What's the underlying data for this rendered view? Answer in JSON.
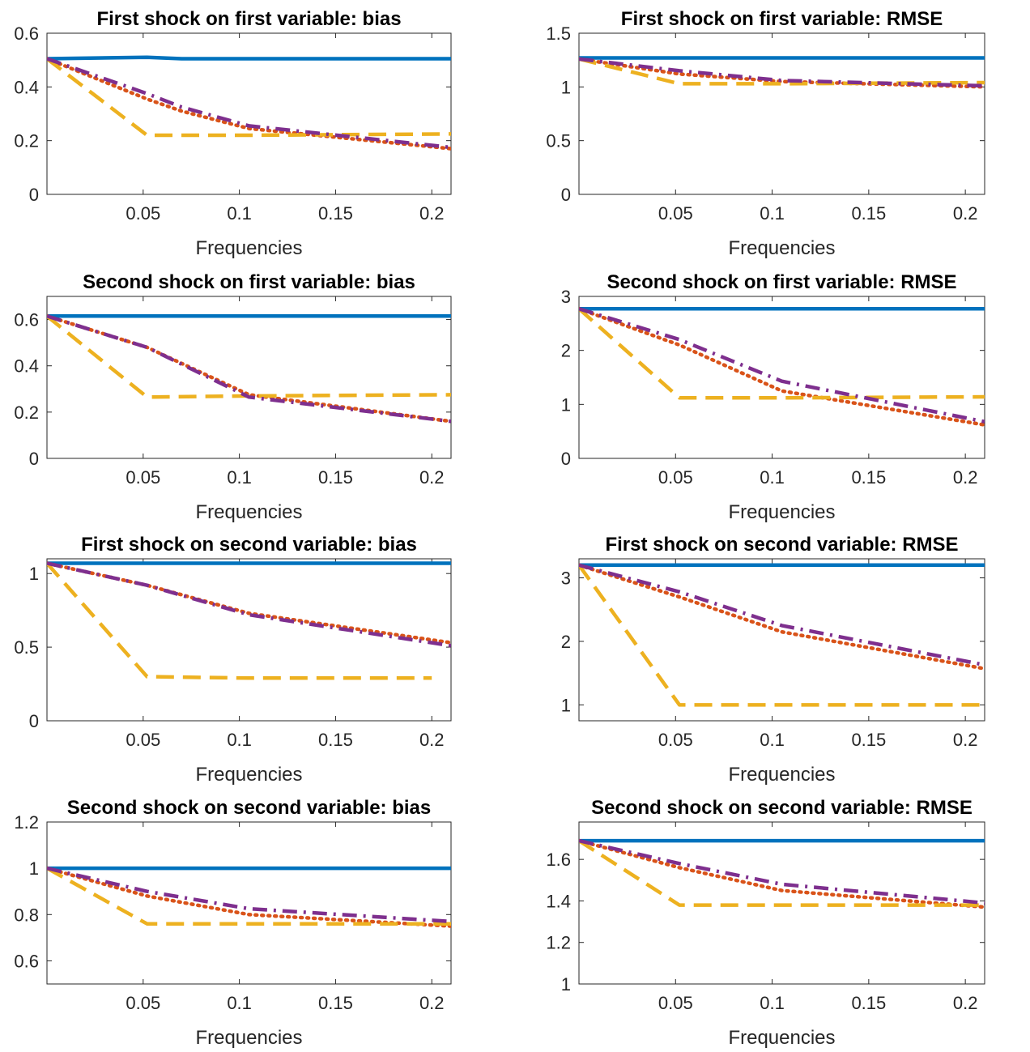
{
  "colors": {
    "series_1": "#0072bd",
    "series_2": "#d95319",
    "series_3": "#edb120",
    "series_4": "#7e2f8e",
    "axis": "#262626"
  },
  "chart_data": [
    {
      "type": "line",
      "title": "First shock on first variable: bias",
      "xlabel": "Frequencies",
      "ylabel": "",
      "xlim": [
        0.0,
        0.21
      ],
      "ylim": [
        0,
        0.6
      ],
      "xticks": [
        0.05,
        0.1,
        0.15,
        0.2
      ],
      "xtick_labels": [
        "0.05",
        "0.1",
        "0.15",
        "0.2"
      ],
      "yticks": [
        0,
        0.2,
        0.4,
        0.6
      ],
      "ytick_labels": [
        "0",
        "0.2",
        "0.4",
        "0.6"
      ],
      "grid": false,
      "series": [
        {
          "style": "solid",
          "x": [
            0.0,
            0.052,
            0.07,
            0.105,
            0.21
          ],
          "y": [
            0.505,
            0.51,
            0.505,
            0.505,
            0.505
          ]
        },
        {
          "style": "dotted",
          "x": [
            0.0,
            0.052,
            0.07,
            0.105,
            0.21
          ],
          "y": [
            0.505,
            0.355,
            0.31,
            0.245,
            0.17
          ]
        },
        {
          "style": "dashed",
          "x": [
            0.0,
            0.052,
            0.07,
            0.105,
            0.21
          ],
          "y": [
            0.505,
            0.22,
            0.22,
            0.22,
            0.225
          ]
        },
        {
          "style": "dashdot",
          "x": [
            0.0,
            0.052,
            0.07,
            0.105,
            0.21
          ],
          "y": [
            0.505,
            0.375,
            0.325,
            0.255,
            0.175
          ]
        }
      ]
    },
    {
      "type": "line",
      "title": "First shock on first variable: RMSE",
      "xlabel": "Frequencies",
      "ylabel": "",
      "xlim": [
        0.0,
        0.21
      ],
      "ylim": [
        0,
        1.5
      ],
      "xticks": [
        0.05,
        0.1,
        0.15,
        0.2
      ],
      "xtick_labels": [
        "0.05",
        "0.1",
        "0.15",
        "0.2"
      ],
      "yticks": [
        0,
        0.5,
        1,
        1.5
      ],
      "ytick_labels": [
        "0",
        "0.5",
        "1",
        "1.5"
      ],
      "grid": false,
      "series": [
        {
          "style": "solid",
          "x": [
            0.0,
            0.052,
            0.105,
            0.21
          ],
          "y": [
            1.27,
            1.27,
            1.27,
            1.27
          ]
        },
        {
          "style": "dotted",
          "x": [
            0.0,
            0.052,
            0.105,
            0.21
          ],
          "y": [
            1.26,
            1.12,
            1.05,
            1.0
          ]
        },
        {
          "style": "dashed",
          "x": [
            0.0,
            0.052,
            0.105,
            0.21
          ],
          "y": [
            1.26,
            1.03,
            1.03,
            1.04
          ]
        },
        {
          "style": "dashdot",
          "x": [
            0.0,
            0.052,
            0.105,
            0.21
          ],
          "y": [
            1.26,
            1.15,
            1.06,
            1.01
          ]
        }
      ]
    },
    {
      "type": "line",
      "title": "Second shock on first variable: bias",
      "xlabel": "Frequencies",
      "ylabel": "",
      "xlim": [
        0.0,
        0.21
      ],
      "ylim": [
        0,
        0.7
      ],
      "xticks": [
        0.05,
        0.1,
        0.15,
        0.2
      ],
      "xtick_labels": [
        "0.05",
        "0.1",
        "0.15",
        "0.2"
      ],
      "yticks": [
        0,
        0.2,
        0.4,
        0.6
      ],
      "ytick_labels": [
        "0",
        "0.2",
        "0.4",
        "0.6"
      ],
      "grid": false,
      "series": [
        {
          "style": "solid",
          "x": [
            0.0,
            0.052,
            0.105,
            0.21
          ],
          "y": [
            0.615,
            0.615,
            0.615,
            0.615
          ]
        },
        {
          "style": "dotted",
          "x": [
            0.0,
            0.052,
            0.105,
            0.21
          ],
          "y": [
            0.615,
            0.48,
            0.275,
            0.16
          ]
        },
        {
          "style": "dashed",
          "x": [
            0.0,
            0.052,
            0.105,
            0.21
          ],
          "y": [
            0.615,
            0.265,
            0.27,
            0.275
          ]
        },
        {
          "style": "dashdot",
          "x": [
            0.0,
            0.052,
            0.105,
            0.21
          ],
          "y": [
            0.615,
            0.48,
            0.265,
            0.16
          ]
        }
      ]
    },
    {
      "type": "line",
      "title": "Second shock on first variable: RMSE",
      "xlabel": "Frequencies",
      "ylabel": "",
      "xlim": [
        0.0,
        0.21
      ],
      "ylim": [
        0,
        3
      ],
      "xticks": [
        0.05,
        0.1,
        0.15,
        0.2
      ],
      "xtick_labels": [
        "0.05",
        "0.1",
        "0.15",
        "0.2"
      ],
      "yticks": [
        0,
        1,
        2,
        3
      ],
      "ytick_labels": [
        "0",
        "1",
        "2",
        "3"
      ],
      "grid": false,
      "series": [
        {
          "style": "solid",
          "x": [
            0.0,
            0.052,
            0.105,
            0.21
          ],
          "y": [
            2.77,
            2.77,
            2.77,
            2.77
          ]
        },
        {
          "style": "dotted",
          "x": [
            0.0,
            0.052,
            0.105,
            0.21
          ],
          "y": [
            2.77,
            2.1,
            1.25,
            0.62
          ]
        },
        {
          "style": "dashed",
          "x": [
            0.0,
            0.052,
            0.105,
            0.21
          ],
          "y": [
            2.77,
            1.12,
            1.12,
            1.14
          ]
        },
        {
          "style": "dashdot",
          "x": [
            0.0,
            0.052,
            0.105,
            0.21
          ],
          "y": [
            2.77,
            2.2,
            1.43,
            0.68
          ]
        }
      ]
    },
    {
      "type": "line",
      "title": "First shock on second variable: bias",
      "xlabel": "Frequencies",
      "ylabel": "",
      "xlim": [
        0.0,
        0.21
      ],
      "ylim": [
        0,
        1.1
      ],
      "xticks": [
        0.05,
        0.1,
        0.15,
        0.2
      ],
      "xtick_labels": [
        "0.05",
        "0.1",
        "0.15",
        "0.2"
      ],
      "yticks": [
        0,
        0.5,
        1
      ],
      "ytick_labels": [
        "0",
        "0.5",
        "1"
      ],
      "grid": false,
      "series": [
        {
          "style": "solid",
          "x": [
            0.0,
            0.052,
            0.105,
            0.21
          ],
          "y": [
            1.07,
            1.07,
            1.07,
            1.07
          ]
        },
        {
          "style": "dotted",
          "x": [
            0.0,
            0.052,
            0.105,
            0.21
          ],
          "y": [
            1.07,
            0.92,
            0.73,
            0.53
          ]
        },
        {
          "style": "dashed",
          "x": [
            0.0,
            0.052,
            0.105,
            0.2
          ],
          "y": [
            1.07,
            0.3,
            0.29,
            0.29
          ]
        },
        {
          "style": "dashdot",
          "x": [
            0.0,
            0.052,
            0.105,
            0.21
          ],
          "y": [
            1.07,
            0.92,
            0.72,
            0.51
          ]
        }
      ]
    },
    {
      "type": "line",
      "title": "First shock on second variable: RMSE",
      "xlabel": "Frequencies",
      "ylabel": "",
      "xlim": [
        0.0,
        0.21
      ],
      "ylim": [
        0.75,
        3.3
      ],
      "xticks": [
        0.05,
        0.1,
        0.15,
        0.2
      ],
      "xtick_labels": [
        "0.05",
        "0.1",
        "0.15",
        "0.2"
      ],
      "yticks": [
        1,
        2,
        3
      ],
      "ytick_labels": [
        "1",
        "2",
        "3"
      ],
      "grid": false,
      "series": [
        {
          "style": "solid",
          "x": [
            0.0,
            0.052,
            0.105,
            0.21
          ],
          "y": [
            3.2,
            3.2,
            3.2,
            3.2
          ]
        },
        {
          "style": "dotted",
          "x": [
            0.0,
            0.052,
            0.105,
            0.21
          ],
          "y": [
            3.2,
            2.7,
            2.15,
            1.57
          ]
        },
        {
          "style": "dashed",
          "x": [
            0.0,
            0.052,
            0.105,
            0.21
          ],
          "y": [
            3.2,
            1.0,
            1.0,
            1.0
          ]
        },
        {
          "style": "dashdot",
          "x": [
            0.0,
            0.052,
            0.105,
            0.21
          ],
          "y": [
            3.2,
            2.78,
            2.25,
            1.63
          ]
        }
      ]
    },
    {
      "type": "line",
      "title": "Second shock on second variable: bias",
      "xlabel": "Frequencies",
      "ylabel": "",
      "xlim": [
        0.0,
        0.21
      ],
      "ylim": [
        0.5,
        1.2
      ],
      "xticks": [
        0.05,
        0.1,
        0.15,
        0.2
      ],
      "xtick_labels": [
        "0.05",
        "0.1",
        "0.15",
        "0.2"
      ],
      "yticks": [
        0.6,
        0.8,
        1,
        1.2
      ],
      "ytick_labels": [
        "0.6",
        "0.8",
        "1",
        "1.2"
      ],
      "grid": false,
      "series": [
        {
          "style": "solid",
          "x": [
            0.0,
            0.052,
            0.105,
            0.21
          ],
          "y": [
            1.0,
            1.0,
            1.0,
            1.0
          ]
        },
        {
          "style": "dotted",
          "x": [
            0.0,
            0.052,
            0.105,
            0.21
          ],
          "y": [
            1.0,
            0.88,
            0.8,
            0.75
          ]
        },
        {
          "style": "dashed",
          "x": [
            0.0,
            0.052,
            0.105,
            0.21
          ],
          "y": [
            1.0,
            0.76,
            0.76,
            0.76
          ]
        },
        {
          "style": "dashdot",
          "x": [
            0.0,
            0.052,
            0.105,
            0.21
          ],
          "y": [
            1.0,
            0.9,
            0.825,
            0.77
          ]
        }
      ]
    },
    {
      "type": "line",
      "title": "Second shock on second variable: RMSE",
      "xlabel": "Frequencies",
      "ylabel": "",
      "xlim": [
        0.0,
        0.21
      ],
      "ylim": [
        1.0,
        1.78
      ],
      "xticks": [
        0.05,
        0.1,
        0.15,
        0.2
      ],
      "xtick_labels": [
        "0.05",
        "0.1",
        "0.15",
        "0.2"
      ],
      "yticks": [
        1,
        1.2,
        1.4,
        1.6
      ],
      "ytick_labels": [
        "1",
        "1.2",
        "1.4",
        "1.6"
      ],
      "grid": false,
      "series": [
        {
          "style": "solid",
          "x": [
            0.0,
            0.052,
            0.105,
            0.21
          ],
          "y": [
            1.69,
            1.69,
            1.69,
            1.69
          ]
        },
        {
          "style": "dotted",
          "x": [
            0.0,
            0.052,
            0.105,
            0.21
          ],
          "y": [
            1.69,
            1.56,
            1.45,
            1.37
          ]
        },
        {
          "style": "dashed",
          "x": [
            0.0,
            0.052,
            0.105,
            0.21
          ],
          "y": [
            1.69,
            1.38,
            1.38,
            1.38
          ]
        },
        {
          "style": "dashdot",
          "x": [
            0.0,
            0.052,
            0.105,
            0.21
          ],
          "y": [
            1.69,
            1.58,
            1.48,
            1.39
          ]
        }
      ]
    }
  ]
}
